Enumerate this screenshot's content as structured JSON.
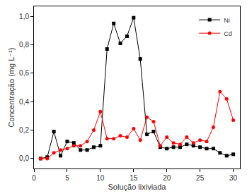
{
  "chart_data": {
    "type": "line",
    "x_label": "Solução lixiviada",
    "y_label": "Concentração (mg L⁻¹)",
    "x": [
      1,
      2,
      3,
      4,
      5,
      6,
      7,
      8,
      9,
      10,
      11,
      12,
      13,
      14,
      15,
      16,
      17,
      18,
      19,
      20,
      21,
      22,
      23,
      24,
      25,
      26,
      27,
      28,
      29,
      30
    ],
    "series": [
      {
        "name": "Ni",
        "color": "#000000",
        "marker": "square",
        "line_style": "solid",
        "values": [
          0.0,
          0.01,
          0.19,
          0.02,
          0.12,
          0.11,
          0.06,
          0.06,
          0.08,
          0.09,
          0.77,
          0.95,
          0.81,
          0.86,
          0.99,
          0.7,
          0.17,
          0.19,
          0.08,
          0.07,
          0.08,
          0.08,
          0.1,
          0.09,
          0.08,
          0.07,
          0.07,
          0.04,
          0.02,
          0.03
        ]
      },
      {
        "name": "Cd",
        "color": "#ff0000",
        "marker": "circle",
        "line_style": "solid",
        "values": [
          0.0,
          0.0,
          0.04,
          0.06,
          0.07,
          0.09,
          0.09,
          0.12,
          0.2,
          0.33,
          0.14,
          0.14,
          0.16,
          0.15,
          0.21,
          0.13,
          0.29,
          0.26,
          0.09,
          0.15,
          0.11,
          0.1,
          0.15,
          0.11,
          0.13,
          0.12,
          0.22,
          0.47,
          0.42,
          0.27
        ]
      }
    ],
    "xlim": [
      0,
      31
    ],
    "xticks": [
      0,
      5,
      10,
      15,
      20,
      25,
      30
    ],
    "ylim": [
      -0.07,
      1.07
    ],
    "yticks": [
      {
        "value": 0.0,
        "label": "0,0"
      },
      {
        "value": 0.2,
        "label": "0,2"
      },
      {
        "value": 0.4,
        "label": "0,4"
      },
      {
        "value": 0.6,
        "label": "0,6"
      },
      {
        "value": 0.8,
        "label": "0,8"
      },
      {
        "value": 1.0,
        "label": "1,0"
      }
    ],
    "grid": false,
    "legend": "top right"
  }
}
